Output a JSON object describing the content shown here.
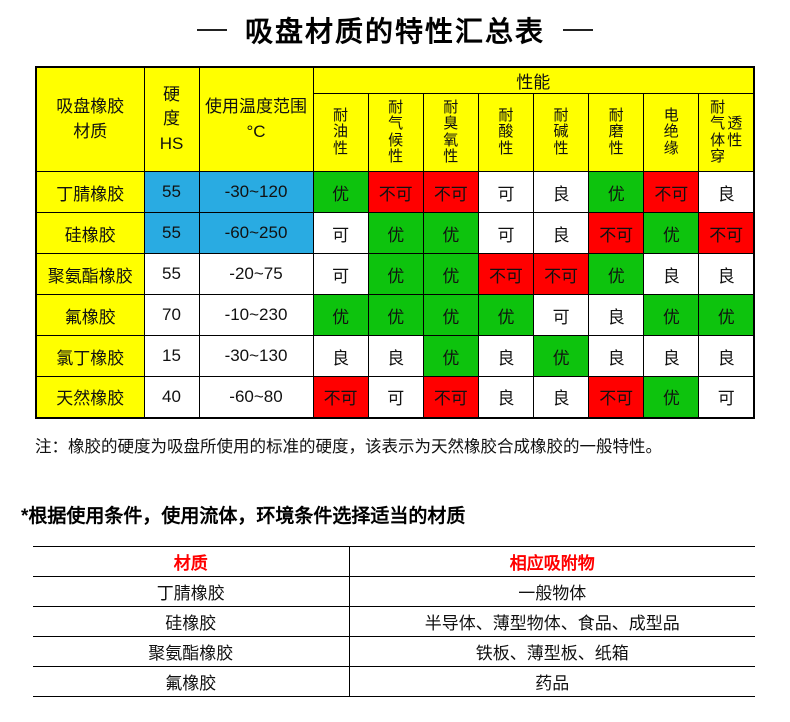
{
  "title": {
    "text": "吸盘材质的特性汇总表"
  },
  "colors": {
    "yellow": "#ffff00",
    "blue": "#29abe2",
    "green": "#0dc30d",
    "red": "#ff0000"
  },
  "spec_table": {
    "header": {
      "material": "吸盘橡胶\n材质",
      "hardness": "硬\n度\nHS",
      "temp": "使用温度范围\n°C",
      "performance": "性能",
      "perf_cols": [
        {
          "lines": "耐\n油\n性"
        },
        {
          "lines": "耐\n气\n候\n性"
        },
        {
          "lines": "耐\n臭\n氧\n性"
        },
        {
          "lines": "耐\n酸\n性"
        },
        {
          "lines": "耐\n碱\n性"
        },
        {
          "lines": "耐\n磨\n性"
        },
        {
          "lines": "电\n绝\n缘"
        },
        {
          "lines": "耐\n气\n体\n穿",
          "lines2": "透\n性"
        }
      ]
    },
    "value_colors": {
      "优": "green",
      "良": "white",
      "可": "white",
      "不可": "red"
    },
    "rows": [
      {
        "material": "丁腈橡胶",
        "hardness": "55",
        "temp": "-30~120",
        "spec_bg": "blue",
        "perf": [
          "优",
          "不可",
          "不可",
          "可",
          "良",
          "优",
          "不可",
          "良"
        ]
      },
      {
        "material": "硅橡胶",
        "hardness": "55",
        "temp": "-60~250",
        "spec_bg": "blue",
        "perf": [
          "可",
          "优",
          "优",
          "可",
          "良",
          "不可",
          "优",
          "不可"
        ]
      },
      {
        "material": "聚氨酯橡胶",
        "hardness": "55",
        "temp": "-20~75",
        "spec_bg": "white",
        "perf": [
          "可",
          "优",
          "优",
          "不可",
          "不可",
          "优",
          "良",
          "良"
        ]
      },
      {
        "material": "氟橡胶",
        "hardness": "70",
        "temp": "-10~230",
        "spec_bg": "white",
        "perf": [
          "优",
          "优",
          "优",
          "优",
          "可",
          "良",
          "优",
          "优"
        ]
      },
      {
        "material": "氯丁橡胶",
        "hardness": "15",
        "temp": "-30~130",
        "spec_bg": "white",
        "perf": [
          "良",
          "良",
          "优",
          "良",
          "优",
          "良",
          "良",
          "良"
        ]
      },
      {
        "material": "天然橡胶",
        "hardness": "40",
        "temp": "-60~80",
        "spec_bg": "white",
        "perf": [
          "不可",
          "可",
          "不可",
          "良",
          "良",
          "不可",
          "优",
          "可"
        ]
      }
    ]
  },
  "note": "注：橡胶的硬度为吸盘所使用的标准的硬度，该表示为天然橡胶合成橡胶的一般特性。",
  "section_heading": "*根据使用条件，使用流体，环境条件选择适当的材质",
  "match_table": {
    "headers": {
      "material": "材质",
      "objects": "相应吸附物"
    },
    "rows": [
      {
        "material": "丁腈橡胶",
        "objects": "一般物体"
      },
      {
        "material": "硅橡胶",
        "objects": "半导体、薄型物体、食品、成型品"
      },
      {
        "material": "聚氨酯橡胶",
        "objects": "铁板、薄型板、纸箱"
      },
      {
        "material": "氟橡胶",
        "objects": "药品"
      }
    ]
  }
}
